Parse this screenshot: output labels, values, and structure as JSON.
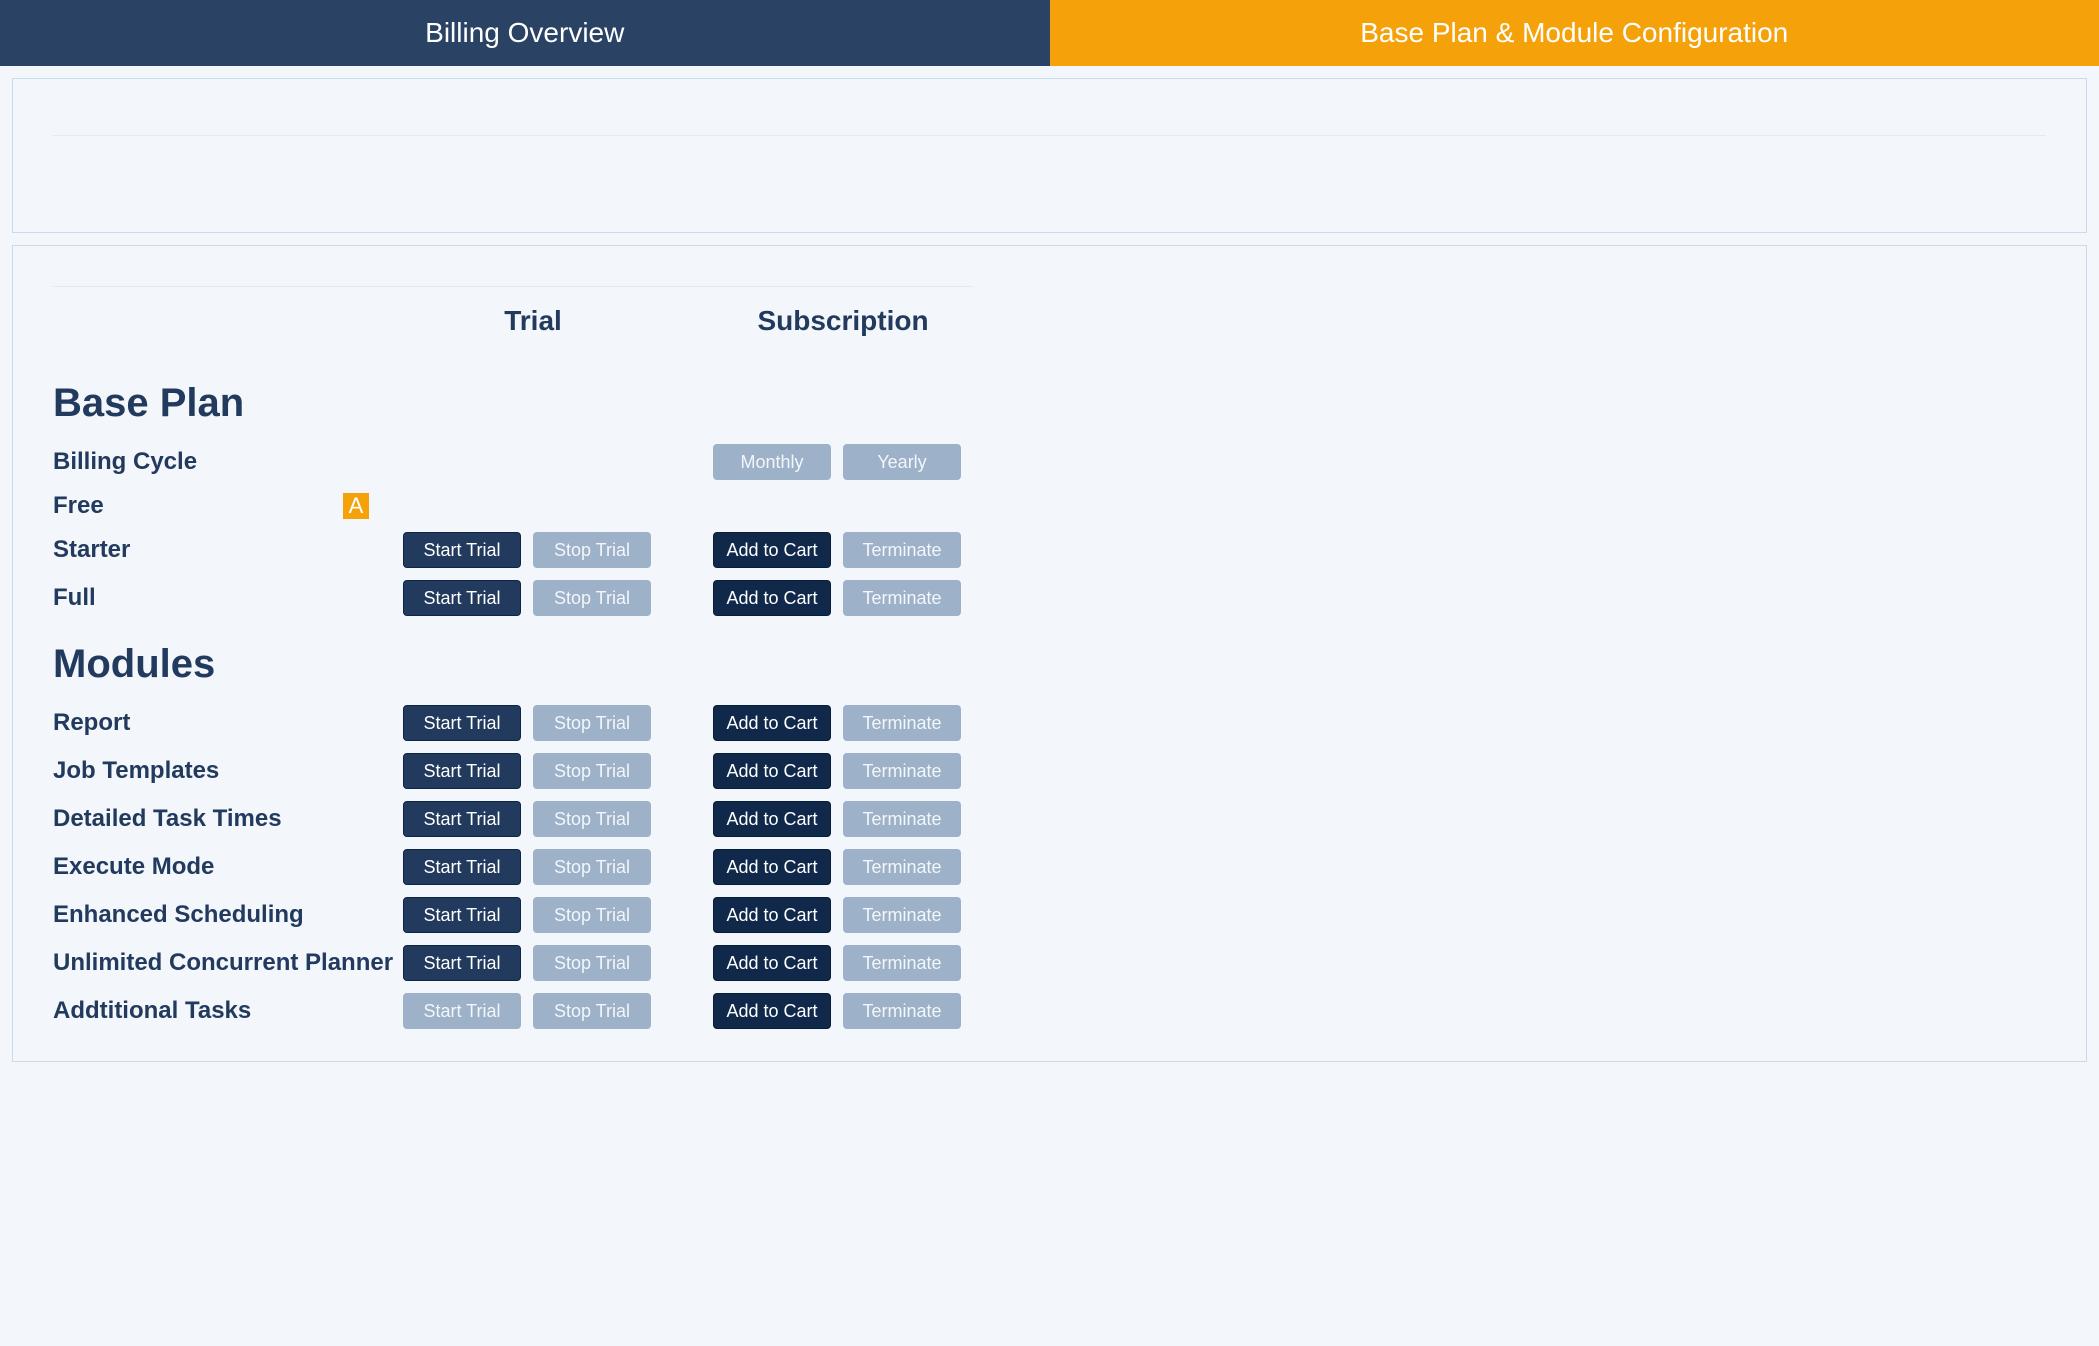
{
  "colors": {
    "tab_inactive_bg": "#2a4263",
    "tab_active_bg": "#f5a20a",
    "tab_text": "#ffffff",
    "page_bg": "#f3f6fa",
    "panel_border": "#c9dbef",
    "rule": "#e4eaf2",
    "heading": "#223a5e",
    "btn_primary_bg": "#223a5e",
    "btn_primary_dark_bg": "#10294b",
    "btn_disabled_bg": "#9db1c9",
    "badge_bg": "#f5a20a"
  },
  "tabs": {
    "left": "Billing Overview",
    "right": "Base Plan & Module Configuration",
    "active": "right"
  },
  "columns": {
    "trial": "Trial",
    "subscription": "Subscription"
  },
  "labels": {
    "start_trial": "Start Trial",
    "stop_trial": "Stop Trial",
    "add_to_cart": "Add to Cart",
    "terminate": "Terminate",
    "monthly": "Monthly",
    "yearly": "Yearly"
  },
  "sections": {
    "base_plan": {
      "title": "Base Plan",
      "rows": [
        {
          "key": "billing_cycle",
          "label": "Billing Cycle",
          "type": "cycle",
          "monthly_enabled": false,
          "yearly_enabled": false
        },
        {
          "key": "free",
          "label": "Free",
          "type": "badge",
          "badge": "A"
        },
        {
          "key": "starter",
          "label": "Starter",
          "type": "actions",
          "start_trial_enabled": true,
          "stop_trial_enabled": false,
          "add_to_cart_enabled": true,
          "terminate_enabled": false
        },
        {
          "key": "full",
          "label": "Full",
          "type": "actions",
          "start_trial_enabled": true,
          "stop_trial_enabled": false,
          "add_to_cart_enabled": true,
          "terminate_enabled": false
        }
      ]
    },
    "modules": {
      "title": "Modules",
      "rows": [
        {
          "key": "report",
          "label": "Report",
          "type": "actions",
          "start_trial_enabled": true,
          "stop_trial_enabled": false,
          "add_to_cart_enabled": true,
          "terminate_enabled": false
        },
        {
          "key": "job_templates",
          "label": "Job Templates",
          "type": "actions",
          "start_trial_enabled": true,
          "stop_trial_enabled": false,
          "add_to_cart_enabled": true,
          "terminate_enabled": false
        },
        {
          "key": "detailed_task_times",
          "label": "Detailed Task Times",
          "type": "actions",
          "start_trial_enabled": true,
          "stop_trial_enabled": false,
          "add_to_cart_enabled": true,
          "terminate_enabled": false
        },
        {
          "key": "execute_mode",
          "label": "Execute Mode",
          "type": "actions",
          "start_trial_enabled": true,
          "stop_trial_enabled": false,
          "add_to_cart_enabled": true,
          "terminate_enabled": false
        },
        {
          "key": "enhanced_scheduling",
          "label": "Enhanced Scheduling",
          "type": "actions",
          "start_trial_enabled": true,
          "stop_trial_enabled": false,
          "add_to_cart_enabled": true,
          "terminate_enabled": false
        },
        {
          "key": "unlimited_concurrent_planner",
          "label": "Unlimited Concurrent Planner",
          "type": "actions",
          "start_trial_enabled": true,
          "stop_trial_enabled": false,
          "add_to_cart_enabled": true,
          "terminate_enabled": false
        },
        {
          "key": "additional_tasks",
          "label": "Addtitional Tasks",
          "type": "actions",
          "start_trial_enabled": false,
          "stop_trial_enabled": false,
          "add_to_cart_enabled": true,
          "terminate_enabled": false
        }
      ]
    }
  }
}
